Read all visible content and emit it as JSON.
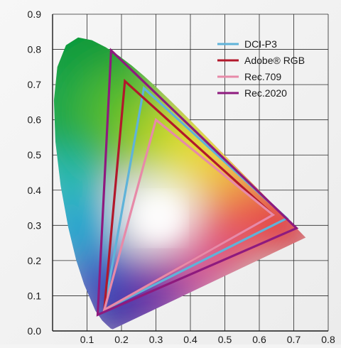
{
  "chart_data": {
    "type": "scatter",
    "title": "",
    "xlabel": "",
    "ylabel": "",
    "xlim": [
      0,
      0.8
    ],
    "ylim": [
      0,
      0.9
    ],
    "grid": true,
    "legend_position": "top-right",
    "x_ticks": [
      "0.1",
      "0.2",
      "0.3",
      "0.4",
      "0.5",
      "0.6",
      "0.7",
      "0.8"
    ],
    "y_ticks": [
      "0.0",
      "0.1",
      "0.2",
      "0.3",
      "0.4",
      "0.5",
      "0.6",
      "0.7",
      "0.8",
      "0.9"
    ],
    "x_tick_values": [
      0.1,
      0.2,
      0.3,
      0.4,
      0.5,
      0.6,
      0.7,
      0.8
    ],
    "y_tick_values": [
      0.0,
      0.1,
      0.2,
      0.3,
      0.4,
      0.5,
      0.6,
      0.7,
      0.8,
      0.9
    ],
    "spectral_locus": [
      [
        0.175,
        0.005
      ],
      [
        0.174,
        0.005
      ],
      [
        0.1689,
        0.0069
      ],
      [
        0.1644,
        0.0109
      ],
      [
        0.1566,
        0.0177
      ],
      [
        0.144,
        0.0297
      ],
      [
        0.1241,
        0.0578
      ],
      [
        0.0913,
        0.1327
      ],
      [
        0.0687,
        0.2007
      ],
      [
        0.0454,
        0.295
      ],
      [
        0.0235,
        0.4127
      ],
      [
        0.0082,
        0.5384
      ],
      [
        0.0039,
        0.6548
      ],
      [
        0.0139,
        0.7502
      ],
      [
        0.0389,
        0.812
      ],
      [
        0.0743,
        0.8338
      ],
      [
        0.1142,
        0.8262
      ],
      [
        0.1547,
        0.8059
      ],
      [
        0.1929,
        0.7816
      ],
      [
        0.2296,
        0.7543
      ],
      [
        0.2658,
        0.7243
      ],
      [
        0.3016,
        0.6923
      ],
      [
        0.3373,
        0.6589
      ],
      [
        0.3731,
        0.6245
      ],
      [
        0.4087,
        0.5896
      ],
      [
        0.4441,
        0.5547
      ],
      [
        0.4788,
        0.5202
      ],
      [
        0.5125,
        0.4866
      ],
      [
        0.5448,
        0.4544
      ],
      [
        0.5752,
        0.4242
      ],
      [
        0.6029,
        0.3965
      ],
      [
        0.627,
        0.3725
      ],
      [
        0.6482,
        0.3514
      ],
      [
        0.6658,
        0.334
      ],
      [
        0.6801,
        0.3197
      ],
      [
        0.6915,
        0.3083
      ],
      [
        0.7006,
        0.2993
      ],
      [
        0.714,
        0.2859
      ],
      [
        0.7347,
        0.2653
      ]
    ],
    "series": [
      {
        "name": "DCI-P3",
        "color": "#5fb3d9",
        "points": [
          [
            0.68,
            0.32
          ],
          [
            0.265,
            0.69
          ],
          [
            0.15,
            0.06
          ]
        ]
      },
      {
        "name": "Adobe® RGB",
        "color": "#b2182b",
        "points": [
          [
            0.64,
            0.33
          ],
          [
            0.21,
            0.71
          ],
          [
            0.15,
            0.06
          ]
        ]
      },
      {
        "name": "Rec.709",
        "color": "#e78aa8",
        "points": [
          [
            0.64,
            0.33
          ],
          [
            0.3,
            0.6
          ],
          [
            0.15,
            0.06
          ]
        ]
      },
      {
        "name": "Rec.2020",
        "color": "#8e1a7e",
        "points": [
          [
            0.708,
            0.292
          ],
          [
            0.17,
            0.797
          ],
          [
            0.131,
            0.046
          ]
        ]
      }
    ]
  }
}
